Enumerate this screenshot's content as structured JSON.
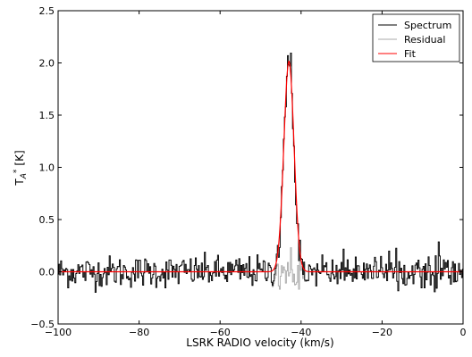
{
  "chart_data": {
    "type": "line",
    "title": "",
    "xlabel": "LSRK RADIO velocity (km/s)",
    "ylabel": "T",
    "ylabel_subscript": "A",
    "ylabel_superscript": "*",
    "ylabel_unit": "[K]",
    "xlim": [
      -100,
      0
    ],
    "ylim": [
      -0.5,
      2.5
    ],
    "x_ticks": [
      -100,
      -80,
      -60,
      -40,
      -20,
      0
    ],
    "x_tick_labels": [
      "−100",
      "−80",
      "−60",
      "−40",
      "−20",
      "0"
    ],
    "y_ticks": [
      -0.5,
      0.0,
      0.5,
      1.0,
      1.5,
      2.0,
      2.5
    ],
    "y_tick_labels": [
      "−0.5",
      "0.0",
      "0.5",
      "1.0",
      "1.5",
      "2.0",
      "2.5"
    ],
    "grid": false,
    "legend_position": "top-right",
    "fit_model": {
      "amplitude": 2.02,
      "center": -43.0,
      "sigma": 1.25
    },
    "noise_rms": 0.075,
    "x_step": 0.25,
    "series": [
      {
        "name": "Spectrum",
        "color": "#000000",
        "role": "spectrum"
      },
      {
        "name": "Residual",
        "color": "#aaaaaa",
        "role": "residual"
      },
      {
        "name": "Fit",
        "color": "#ff0000",
        "role": "fit"
      }
    ]
  }
}
